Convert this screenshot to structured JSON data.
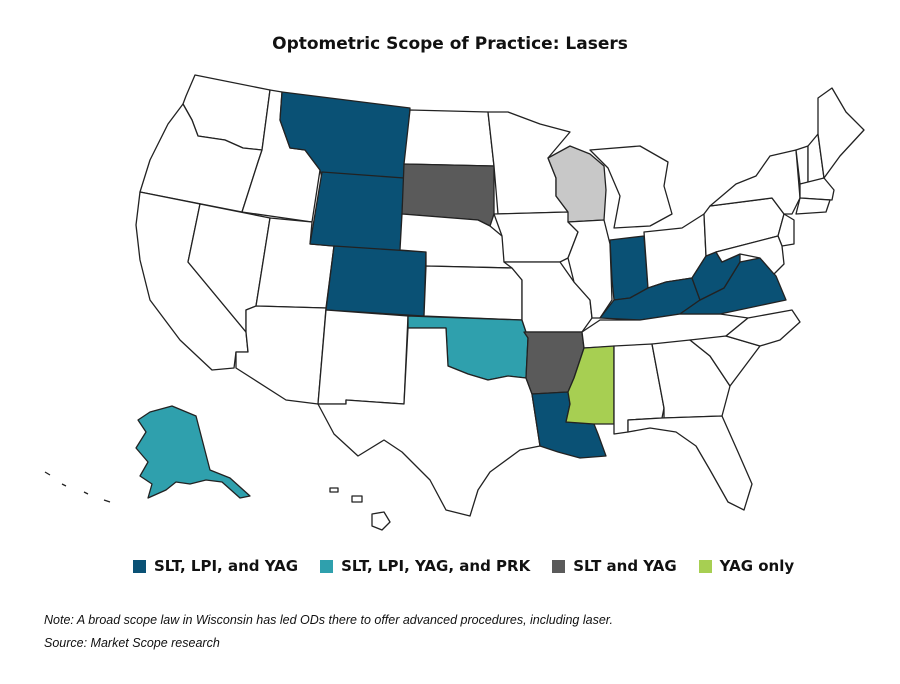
{
  "title": "Optometric Scope of Practice: Lasers",
  "colors": {
    "slt_lpi_yag": "#0a5175",
    "slt_lpi_yag_prk": "#2fa0ad",
    "slt_yag": "#5a5a5a",
    "yag_only": "#a7cf52",
    "wisconsin_note": "#c8c8c8",
    "none": "#ffffff"
  },
  "categories": {
    "SLT, LPI, and YAG": [
      "Montana",
      "Wyoming",
      "Colorado",
      "Indiana",
      "Kentucky",
      "West Virginia",
      "Virginia",
      "Louisiana"
    ],
    "SLT, LPI, YAG, and PRK": [
      "Oklahoma",
      "Alaska"
    ],
    "SLT and YAG": [
      "South Dakota",
      "Arkansas"
    ],
    "YAG only": [
      "Mississippi"
    ],
    "Wisconsin (broad scope law)": [
      "Wisconsin"
    ]
  },
  "legend": [
    {
      "label": "SLT, LPI, and YAG",
      "color": "#0a5175"
    },
    {
      "label": "SLT, LPI, YAG, and PRK",
      "color": "#2fa0ad"
    },
    {
      "label": "SLT and YAG",
      "color": "#5a5a5a"
    },
    {
      "label": "YAG only",
      "color": "#a7cf52"
    }
  ],
  "note": "Note: A broad scope law in Wisconsin has led ODs there to offer advanced procedures, including laser.",
  "source": "Source: Market Scope research"
}
